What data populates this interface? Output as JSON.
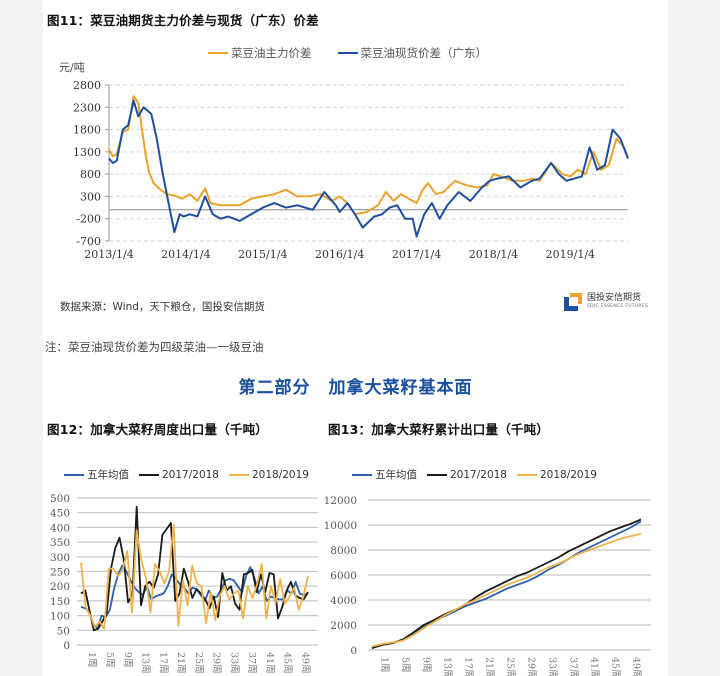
{
  "fig11": {
    "title": "图11：菜豆油期货主力价差与现货（广东）价差",
    "unit": "元/吨",
    "legend": [
      {
        "label": "菜豆油主力价差",
        "color": "#e8a32e"
      },
      {
        "label": "菜豆油现货价差（广东）",
        "color": "#1f4e9c"
      }
    ],
    "source": "数据来源：Wind，天下粮仓，国投安信期货"
  },
  "logo": {
    "name_cn": "国投安信期货",
    "name_en": "SDIC ESSENCE FUTURES"
  },
  "note": "注：菜豆油现货价差为四级菜油—一级豆油",
  "section_title": "第二部分　加拿大菜籽基本面",
  "fig12": {
    "title": "图12：加拿大菜籽周度出口量（千吨）",
    "legend": [
      {
        "label": "五年均值",
        "color": "#2e5fa8"
      },
      {
        "label": "2017/2018",
        "color": "#1a1a1a"
      },
      {
        "label": "2018/2019",
        "color": "#efb34b"
      }
    ]
  },
  "fig13": {
    "title": "图13：加拿大菜籽累计出口量（千吨）",
    "legend": [
      {
        "label": "五年均值",
        "color": "#2e5fa8"
      },
      {
        "label": "2017/2018",
        "color": "#1a1a1a"
      },
      {
        "label": "2018/2019",
        "color": "#efb34b"
      }
    ]
  },
  "chart_data": [
    {
      "id": "fig11",
      "type": "line",
      "title": "菜豆油期货主力价差与现货（广东）价差",
      "ylabel": "元/吨",
      "xlabel": "",
      "ylim": [
        -700,
        2800
      ],
      "yticks": [
        2800,
        2300,
        1800,
        1300,
        800,
        300,
        -200,
        -700
      ],
      "xticks": [
        "2013/1/4",
        "2014/1/4",
        "2015/1/4",
        "2016/1/4",
        "2017/1/4",
        "2018/1/4",
        "2019/1/4"
      ],
      "xrange": [
        2013.0,
        2019.75
      ],
      "zero_line": true,
      "grid": "dashed-horizontal",
      "legend_position": "top",
      "series": [
        {
          "name": "菜豆油主力价差",
          "color": "#e8a32e",
          "x": [
            2013.0,
            2013.05,
            2013.1,
            2013.18,
            2013.25,
            2013.32,
            2013.38,
            2013.42,
            2013.48,
            2013.52,
            2013.58,
            2013.65,
            2013.75,
            2013.85,
            2013.95,
            2014.05,
            2014.15,
            2014.25,
            2014.32,
            2014.4,
            2014.45,
            2014.55,
            2014.7,
            2014.85,
            2015.0,
            2015.15,
            2015.3,
            2015.45,
            2015.6,
            2015.75,
            2015.9,
            2016.0,
            2016.1,
            2016.2,
            2016.35,
            2016.5,
            2016.6,
            2016.7,
            2016.8,
            2016.9,
            2017.0,
            2017.08,
            2017.15,
            2017.25,
            2017.35,
            2017.5,
            2017.65,
            2017.8,
            2017.92,
            2018.0,
            2018.1,
            2018.25,
            2018.4,
            2018.5,
            2018.6,
            2018.75,
            2018.9,
            2019.0,
            2019.1,
            2019.2,
            2019.3,
            2019.4,
            2019.5,
            2019.6,
            2019.7,
            2019.75
          ],
          "values": [
            1350,
            1200,
            1250,
            1750,
            1800,
            2550,
            2400,
            1900,
            1200,
            850,
            600,
            480,
            350,
            320,
            250,
            350,
            200,
            480,
            150,
            120,
            100,
            100,
            100,
            250,
            300,
            350,
            450,
            300,
            300,
            350,
            200,
            300,
            150,
            -100,
            -50,
            100,
            400,
            200,
            350,
            250,
            150,
            450,
            600,
            350,
            400,
            650,
            550,
            500,
            550,
            800,
            750,
            650,
            650,
            700,
            650,
            1050,
            800,
            750,
            900,
            800,
            1300,
            900,
            1000,
            1600,
            1400,
            1150
          ]
        },
        {
          "name": "菜豆油现货价差（广东）",
          "color": "#1f4e9c",
          "x": [
            2013.0,
            2013.05,
            2013.1,
            2013.18,
            2013.25,
            2013.32,
            2013.38,
            2013.45,
            2013.55,
            2013.62,
            2013.7,
            2013.78,
            2013.85,
            2013.92,
            2013.97,
            2014.05,
            2014.15,
            2014.25,
            2014.35,
            2014.45,
            2014.55,
            2014.7,
            2014.85,
            2015.0,
            2015.15,
            2015.3,
            2015.45,
            2015.55,
            2015.65,
            2015.8,
            2015.95,
            2016.0,
            2016.1,
            2016.2,
            2016.3,
            2016.45,
            2016.55,
            2016.65,
            2016.75,
            2016.85,
            2016.95,
            2017.0,
            2017.1,
            2017.2,
            2017.3,
            2017.4,
            2017.55,
            2017.7,
            2017.85,
            2017.95,
            2018.05,
            2018.2,
            2018.35,
            2018.5,
            2018.6,
            2018.75,
            2018.85,
            2018.95,
            2019.05,
            2019.15,
            2019.25,
            2019.35,
            2019.45,
            2019.55,
            2019.65,
            2019.75
          ],
          "values": [
            1150,
            1050,
            1100,
            1800,
            1900,
            2450,
            2100,
            2300,
            2150,
            1600,
            800,
            100,
            -500,
            -100,
            -150,
            -100,
            -150,
            300,
            -100,
            -200,
            -150,
            -250,
            -100,
            50,
            150,
            50,
            100,
            50,
            0,
            400,
            100,
            -50,
            150,
            -100,
            -400,
            -150,
            -100,
            50,
            100,
            -200,
            -200,
            -600,
            -100,
            150,
            -200,
            100,
            400,
            200,
            500,
            650,
            700,
            750,
            500,
            650,
            700,
            1050,
            800,
            650,
            700,
            750,
            1400,
            900,
            1000,
            1800,
            1600,
            1150
          ]
        }
      ]
    },
    {
      "id": "fig12",
      "type": "line",
      "title": "加拿大菜籽周度出口量（千吨）",
      "ylim": [
        0,
        500
      ],
      "yticks": [
        500,
        450,
        400,
        350,
        300,
        250,
        200,
        150,
        100,
        50,
        0
      ],
      "xtick_labels": [
        "1周",
        "5周",
        "9周",
        "13周",
        "17周",
        "21周",
        "25周",
        "29周",
        "33周",
        "37周",
        "41周",
        "45周",
        "49周"
      ],
      "grid": "solid-horizontal",
      "legend_position": "top",
      "series": [
        {
          "name": "五年均值",
          "color": "#2e5fa8",
          "values": [
            130,
            125,
            115,
            70,
            55,
            100,
            95,
            120,
            190,
            240,
            270,
            250,
            220,
            195,
            180,
            170,
            200,
            155,
            165,
            170,
            175,
            200,
            240,
            225,
            205,
            195,
            175,
            195,
            190,
            170,
            150,
            185,
            160,
            165,
            190,
            220,
            225,
            220,
            200,
            180,
            235,
            265,
            230,
            175,
            200,
            150,
            165,
            160,
            155,
            155,
            185,
            175,
            215,
            175,
            170,
            175
          ]
        },
        {
          "name": "2017/2018",
          "color": "#1a1a1a",
          "values": [
            175,
            185,
            115,
            50,
            55,
            80,
            110,
            260,
            330,
            365,
            290,
            145,
            170,
            470,
            135,
            200,
            215,
            195,
            240,
            375,
            395,
            415,
            150,
            175,
            260,
            215,
            160,
            190,
            175,
            155,
            125,
            165,
            95,
            245,
            185,
            200,
            140,
            120,
            240,
            245,
            255,
            180,
            240,
            180,
            245,
            240,
            90,
            130,
            185,
            215,
            170,
            160,
            155,
            180
          ]
        },
        {
          "name": "2018/2019",
          "color": "#efb34b",
          "values": [
            280,
            130,
            100,
            60,
            80,
            55,
            260,
            260,
            235,
            255,
            320,
            110,
            390,
            290,
            230,
            110,
            275,
            250,
            210,
            250,
            410,
            65,
            220,
            135,
            270,
            210,
            200,
            75,
            180,
            85,
            170,
            200,
            155,
            175,
            185,
            90,
            200,
            160,
            205,
            275,
            90,
            200,
            145,
            225,
            140,
            165,
            195,
            120,
            165,
            235
          ]
        }
      ]
    },
    {
      "id": "fig13",
      "type": "line",
      "title": "加拿大菜籽累计出口量（千吨）",
      "ylim": [
        0,
        12000
      ],
      "yticks": [
        12000,
        10000,
        8000,
        6000,
        4000,
        2000,
        0
      ],
      "xtick_labels": [
        "1周",
        "5周",
        "9周",
        "13周",
        "17周",
        "21周",
        "25周",
        "29周",
        "33周",
        "37周",
        "41周",
        "45周",
        "49周"
      ],
      "grid": "solid-horizontal",
      "legend_position": "top",
      "series": [
        {
          "name": "五年均值",
          "color": "#2e5fa8",
          "values": [
            130,
            450,
            600,
            800,
            1300,
            1900,
            2350,
            2700,
            3100,
            3500,
            3800,
            4100,
            4500,
            4900,
            5200,
            5500,
            5900,
            6400,
            6800,
            7300,
            7800,
            8200,
            8600,
            9000,
            9400,
            9800,
            10300
          ]
        },
        {
          "name": "2017/2018",
          "color": "#1a1a1a",
          "values": [
            170,
            400,
            550,
            850,
            1400,
            2000,
            2400,
            2850,
            3200,
            3600,
            4200,
            4700,
            5100,
            5500,
            5900,
            6200,
            6600,
            7000,
            7400,
            7900,
            8300,
            8700,
            9100,
            9500,
            9800,
            10100,
            10450
          ]
        },
        {
          "name": "2018/2019",
          "color": "#efb34b",
          "values": [
            280,
            480,
            600,
            750,
            1200,
            1750,
            2250,
            2750,
            3200,
            3650,
            4000,
            4400,
            4800,
            5200,
            5500,
            5800,
            6200,
            6600,
            6900,
            7300,
            7700,
            8000,
            8300,
            8600,
            8900,
            9100,
            9300
          ]
        }
      ]
    }
  ]
}
